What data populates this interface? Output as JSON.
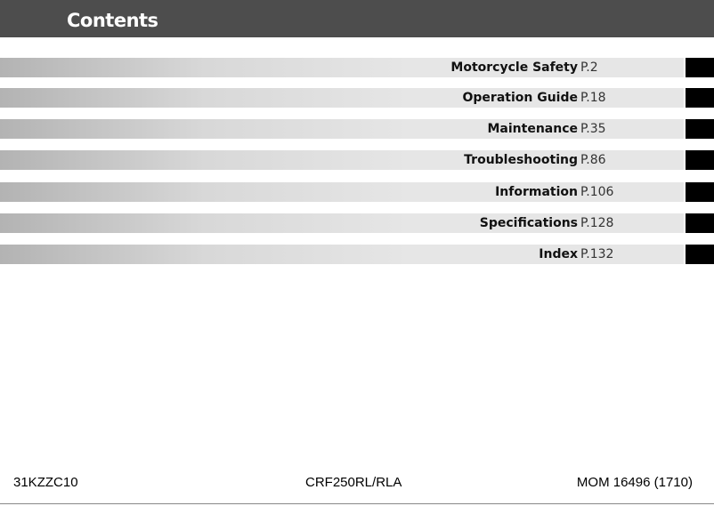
{
  "header": {
    "title": "Contents"
  },
  "entries": [
    {
      "title": "Motorcycle Safety",
      "page": "P.2"
    },
    {
      "title": "Operation Guide",
      "page": "P.18"
    },
    {
      "title": "Maintenance",
      "page": "P.35"
    },
    {
      "title": "Troubleshooting",
      "page": "P.86"
    },
    {
      "title": "Information",
      "page": "P.106"
    },
    {
      "title": "Specifications",
      "page": "P.128"
    },
    {
      "title": "Index",
      "page": "P.132"
    }
  ],
  "footer": {
    "left": "31KZZC10",
    "center": "CRF250RL/RLA",
    "right": "MOM 16496 (1710)"
  }
}
